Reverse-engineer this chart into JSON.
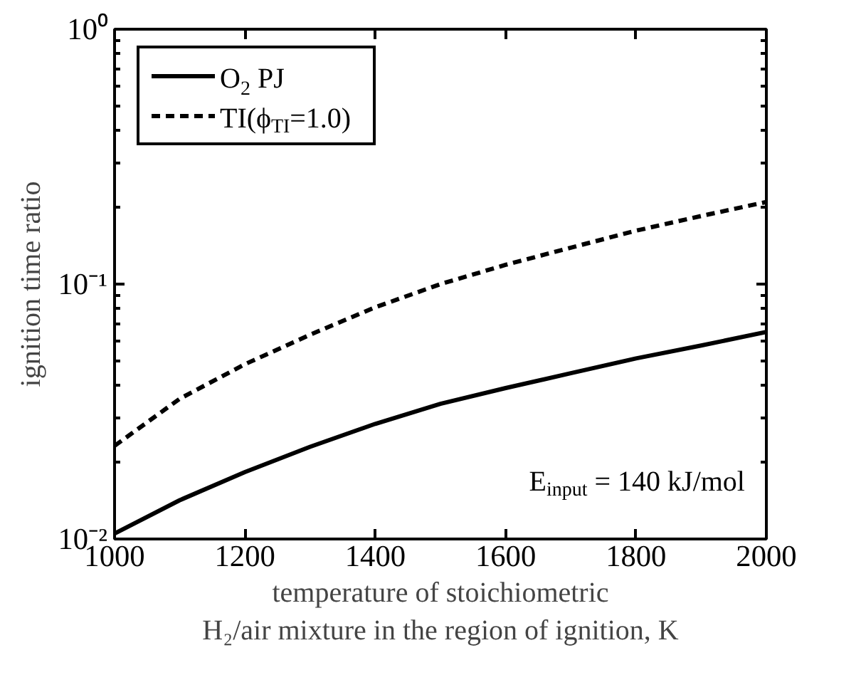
{
  "chart_data": {
    "type": "line",
    "xlabel": "temperature of stoichiometric\nH₂/air mixture in the region of ignition, K",
    "ylabel": "ignition time ratio",
    "x": [
      1000,
      1100,
      1200,
      1300,
      1400,
      1500,
      1600,
      1700,
      1800,
      1900,
      2000
    ],
    "series": [
      {
        "name": "O$_{2}$ PJ",
        "color": "#000000",
        "line_style": "solid",
        "values": [
          0.0105,
          0.0142,
          0.0183,
          0.023,
          0.0283,
          0.0339,
          0.0391,
          0.0447,
          0.0511,
          0.0574,
          0.0649
        ]
      },
      {
        "name": "TI(ϕ$_{TI}$=1.0)",
        "color": "#000000",
        "line_style": "dashed",
        "values": [
          0.0232,
          0.0355,
          0.0485,
          0.0633,
          0.0811,
          0.1,
          0.119,
          0.139,
          0.162,
          0.185,
          0.21
        ]
      }
    ],
    "annotations": [
      "E$_{input}$ = 140 kJ/mol"
    ],
    "log": "y",
    "xlim": [
      1000,
      2000
    ],
    "xticks": [
      1000,
      1200,
      1400,
      1600,
      1800,
      2000
    ],
    "ylim": [
      0.01,
      1
    ],
    "yticks": [
      {
        "value": 0.01,
        "label": "10⁻²"
      },
      {
        "value": 0.1,
        "label": "10⁻¹"
      },
      {
        "value": 1,
        "label": "10⁰"
      }
    ],
    "legend": "top left",
    "grid": false,
    "marker": "none"
  }
}
